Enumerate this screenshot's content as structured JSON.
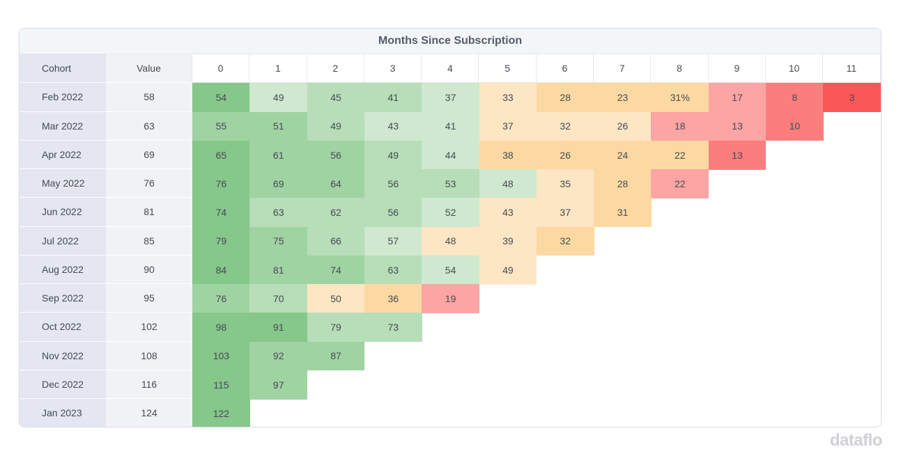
{
  "title": "Months Since Subscription",
  "logo": "dataflo",
  "chart_data": {
    "type": "heatmap",
    "title": "Months Since Subscription",
    "row_header_labels": [
      "Cohort",
      "Value"
    ],
    "columns": [
      "0",
      "1",
      "2",
      "3",
      "4",
      "5",
      "6",
      "7",
      "8",
      "9",
      "10",
      "11"
    ],
    "rows": [
      {
        "cohort": "Feb 2022",
        "value": "58",
        "cells": [
          "54",
          "49",
          "45",
          "41",
          "37",
          "33",
          "28",
          "23",
          "31%",
          "17",
          "8",
          "3"
        ]
      },
      {
        "cohort": "Mar 2022",
        "value": "63",
        "cells": [
          "55",
          "51",
          "49",
          "43",
          "41",
          "37",
          "32",
          "26",
          "18",
          "13",
          "10"
        ]
      },
      {
        "cohort": "Apr 2022",
        "value": "69",
        "cells": [
          "65",
          "61",
          "56",
          "49",
          "44",
          "38",
          "26",
          "24",
          "22",
          "13"
        ]
      },
      {
        "cohort": "May 2022",
        "value": "76",
        "cells": [
          "76",
          "69",
          "64",
          "56",
          "53",
          "48",
          "35",
          "28",
          "22"
        ]
      },
      {
        "cohort": "Jun 2022",
        "value": "81",
        "cells": [
          "74",
          "63",
          "62",
          "56",
          "52",
          "43",
          "37",
          "31"
        ]
      },
      {
        "cohort": "Jul 2022",
        "value": "85",
        "cells": [
          "79",
          "75",
          "66",
          "57",
          "48",
          "39",
          "32"
        ]
      },
      {
        "cohort": "Aug 2022",
        "value": "90",
        "cells": [
          "84",
          "81",
          "74",
          "63",
          "54",
          "49"
        ]
      },
      {
        "cohort": "Sep 2022",
        "value": "95",
        "cells": [
          "76",
          "70",
          "50",
          "36",
          "19"
        ]
      },
      {
        "cohort": "Oct 2022",
        "value": "102",
        "cells": [
          "98",
          "91",
          "79",
          "73"
        ]
      },
      {
        "cohort": "Nov 2022",
        "value": "108",
        "cells": [
          "103",
          "92",
          "87"
        ]
      },
      {
        "cohort": "Dec 2022",
        "value": "116",
        "cells": [
          "115",
          "97"
        ]
      },
      {
        "cohort": "Jan 2023",
        "value": "124",
        "cells": [
          "122"
        ]
      }
    ],
    "cell_colors": [
      [
        "#86c78a",
        "#cfe8cf",
        "#b7deb8",
        "#b7deb8",
        "#cfe8cf",
        "#fde6c4",
        "#fcd9a2",
        "#fcd9a2",
        "#fcd9a2",
        "#fda4a4",
        "#fb7d7d",
        "#fa5858"
      ],
      [
        "#a0d3a2",
        "#a0d3a2",
        "#b7deb8",
        "#cfe8cf",
        "#cfe8cf",
        "#fde6c4",
        "#fde6c4",
        "#fde6c4",
        "#fda4a4",
        "#fda4a4",
        "#fb7d7d"
      ],
      [
        "#86c78a",
        "#a0d3a2",
        "#a0d3a2",
        "#b7deb8",
        "#cfe8cf",
        "#fcd9a2",
        "#fcd9a2",
        "#fcd9a2",
        "#fcd9a2",
        "#fb7d7d"
      ],
      [
        "#86c78a",
        "#a0d3a2",
        "#a0d3a2",
        "#b7deb8",
        "#b7deb8",
        "#cfe8cf",
        "#fde6c4",
        "#fcd9a2",
        "#fda4a4"
      ],
      [
        "#86c78a",
        "#b7deb8",
        "#b7deb8",
        "#b7deb8",
        "#cfe8cf",
        "#fde6c4",
        "#fde6c4",
        "#fcd9a2"
      ],
      [
        "#86c78a",
        "#a0d3a2",
        "#b7deb8",
        "#cfe8cf",
        "#fde6c4",
        "#fde6c4",
        "#fcd9a2"
      ],
      [
        "#86c78a",
        "#a0d3a2",
        "#a0d3a2",
        "#b7deb8",
        "#cfe8cf",
        "#fde6c4"
      ],
      [
        "#a0d3a2",
        "#b7deb8",
        "#fde6c4",
        "#fcd9a2",
        "#fda4a4"
      ],
      [
        "#86c78a",
        "#86c78a",
        "#b7deb8",
        "#b7deb8"
      ],
      [
        "#86c78a",
        "#a0d3a2",
        "#a0d3a2"
      ],
      [
        "#86c78a",
        "#a0d3a2"
      ],
      [
        "#86c78a"
      ]
    ]
  }
}
